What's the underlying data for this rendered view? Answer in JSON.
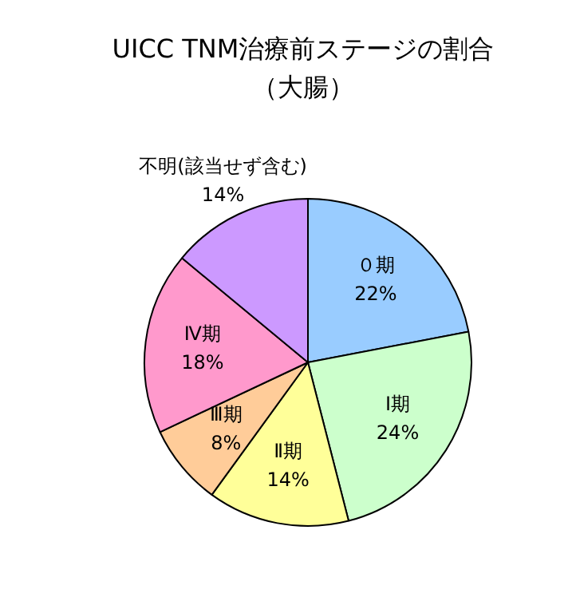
{
  "chart_data": {
    "type": "pie",
    "title": "UICC TNM治療前ステージの割合",
    "subtitle": "（大腸）",
    "categories": [
      "０期",
      "Ⅰ期",
      "Ⅱ期",
      "Ⅲ期",
      "Ⅳ期",
      "不明(該当せず含む)"
    ],
    "values": [
      22,
      24,
      14,
      8,
      18,
      14
    ],
    "colors": [
      "#99ccff",
      "#ccffcc",
      "#ffff99",
      "#ffcc99",
      "#ff99cc",
      "#cc99ff"
    ],
    "value_labels": [
      "22%",
      "24%",
      "14%",
      "8%",
      "18%",
      "14%"
    ],
    "legend": false
  }
}
